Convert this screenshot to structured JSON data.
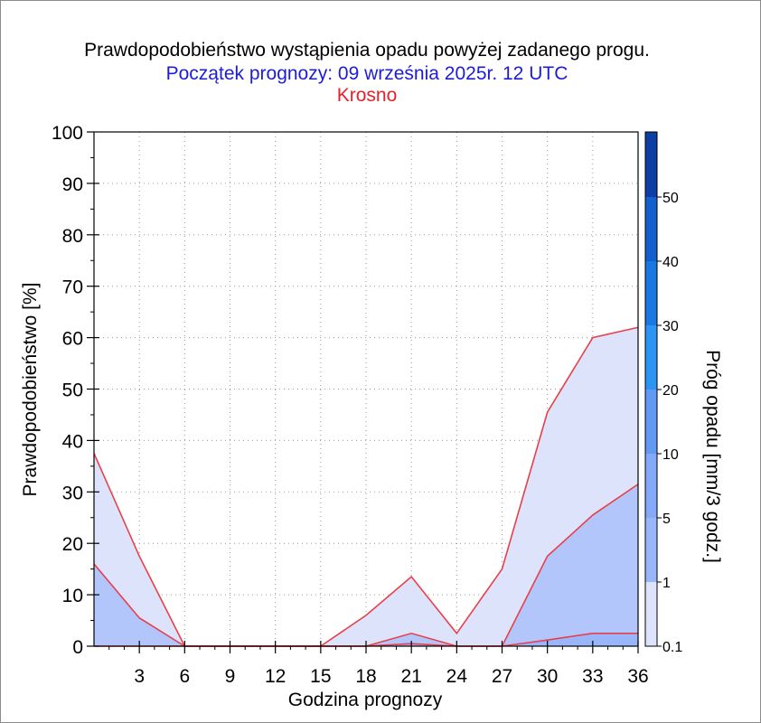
{
  "colors": {
    "title": "#000000",
    "subtitle": "#1c1cd9",
    "location": "#e8202a",
    "series_line": "#e8404a",
    "band_0_1": "#dde3fb",
    "band_1": "#b3c6fc",
    "band_5": "#9ab6fb",
    "band_10": "#84a9f9",
    "band_20": "#6199f3",
    "band_30": "#2e94f4",
    "band_40": "#1a78e2",
    "band_50": "#135fcd",
    "band_top": "#0d3ea4"
  },
  "chart_data": {
    "type": "area",
    "title": "Prawdopodobieństwo wystąpienia opadu powyżej zadanego progu.",
    "subtitle": "Początek prognozy: 09 września 2025r. 12 UTC",
    "location": "Krosno",
    "xlabel": "Godzina prognozy",
    "ylabel": "Prawdopodobieństwo [%]",
    "xlim": [
      0,
      36
    ],
    "ylim": [
      0,
      100
    ],
    "x_ticks": [
      3,
      6,
      9,
      12,
      15,
      18,
      21,
      24,
      27,
      30,
      33,
      36
    ],
    "y_ticks": [
      0,
      10,
      20,
      30,
      40,
      50,
      60,
      70,
      80,
      90,
      100
    ],
    "grid": true,
    "x": [
      0,
      3,
      6,
      9,
      12,
      15,
      18,
      21,
      24,
      27,
      30,
      33,
      36
    ],
    "series": [
      {
        "threshold": "0.1",
        "values": [
          37.5,
          17.5,
          0,
          0,
          0,
          0,
          6,
          13.5,
          2.5,
          15,
          45.5,
          60,
          62
        ]
      },
      {
        "threshold": "1",
        "values": [
          16,
          5.5,
          0,
          0,
          0,
          0,
          0,
          2.5,
          0,
          0,
          17.5,
          25.5,
          31.5
        ]
      },
      {
        "threshold": "5",
        "values": [
          0,
          0,
          0,
          0,
          0,
          0,
          0,
          0.5,
          0,
          0,
          1.2,
          2.5,
          2.5
        ]
      }
    ],
    "colorbar": {
      "label": "Próg opadu [mm/3 godz.]",
      "ticks": [
        "0.1",
        "1",
        "5",
        "10",
        "20",
        "30",
        "40",
        "50"
      ]
    }
  }
}
